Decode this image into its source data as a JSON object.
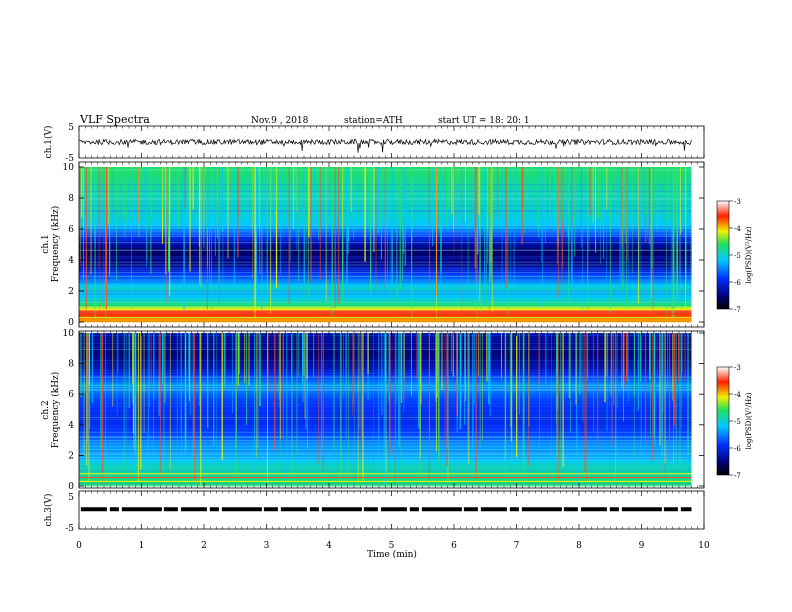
{
  "header": {
    "title": "VLF  Spectra",
    "date": "Nov.9  , 2018",
    "station": "station=ATH",
    "start": "start  UT  =    18: 20: 1"
  },
  "chart_data": [
    {
      "type": "line",
      "panel": "ch1-waveform",
      "ylabel": "ch.1(V)",
      "ylim": [
        -5,
        5
      ],
      "yticks": [
        "5",
        "-5"
      ],
      "xlim": [
        0,
        10
      ],
      "series": [
        {
          "values_description_free": true,
          "approx_level": 0,
          "approx_amplitude": 1.2,
          "end_min": 9.8
        }
      ]
    },
    {
      "type": "heatmap",
      "panel": "ch1-spectrogram",
      "ylabel": "ch.1\nFrequency  (kHz)",
      "ylim": [
        0,
        10
      ],
      "yticks": [
        "0",
        "2",
        "4",
        "6",
        "8",
        "10"
      ],
      "xlim": [
        0,
        10
      ],
      "data_end_min": 9.8,
      "color_scale": {
        "label": "log(PSD)(V²/Hz)",
        "range": [
          -7,
          -3
        ],
        "ticks": [
          "-3",
          "-4",
          "-5",
          "-6",
          "-7"
        ]
      },
      "band_profile_kHz_logPSD": [
        [
          0,
          -4.0
        ],
        [
          0.6,
          -3.4
        ],
        [
          1.0,
          -4.6
        ],
        [
          1.6,
          -5.2
        ],
        [
          2.2,
          -5.0
        ],
        [
          3.0,
          -5.8
        ],
        [
          3.6,
          -6.4
        ],
        [
          4.6,
          -6.6
        ],
        [
          5.4,
          -6.0
        ],
        [
          6.2,
          -5.2
        ],
        [
          7.2,
          -5.0
        ],
        [
          8.4,
          -4.9
        ],
        [
          10,
          -4.6
        ]
      ]
    },
    {
      "type": "heatmap",
      "panel": "ch2-spectrogram",
      "ylabel": "ch.2\nFrequency  (kHz)",
      "ylim": [
        0,
        10
      ],
      "yticks": [
        "0",
        "2",
        "4",
        "6",
        "8",
        "10"
      ],
      "xlim": [
        0,
        10
      ],
      "data_end_min": 9.8,
      "color_scale": {
        "label": "log(PSD)(V²/Hz)",
        "range": [
          -7,
          -3
        ],
        "ticks": [
          "-3",
          "-4",
          "-5",
          "-6",
          "-7"
        ]
      },
      "band_profile_kHz_logPSD": [
        [
          0,
          -4.6
        ],
        [
          0.6,
          -4.8
        ],
        [
          1.4,
          -5.0
        ],
        [
          2.0,
          -5.4
        ],
        [
          2.6,
          -5.4
        ],
        [
          3.4,
          -5.8
        ],
        [
          4.4,
          -6.0
        ],
        [
          5.6,
          -5.8
        ],
        [
          6.6,
          -5.4
        ],
        [
          7.6,
          -6.2
        ],
        [
          8.6,
          -6.5
        ],
        [
          10,
          -6.3
        ]
      ]
    },
    {
      "type": "line",
      "panel": "ch3-waveform",
      "ylabel": "ch.3(V)",
      "ylim": [
        -5,
        5
      ],
      "yticks": [
        "5",
        "-5"
      ],
      "xlim": [
        0,
        10
      ],
      "xlabel": "Time  (min)",
      "xticks": [
        "0",
        "1",
        "2",
        "3",
        "4",
        "5",
        "6",
        "7",
        "8",
        "9",
        "10"
      ],
      "series": [
        {
          "approx_level": 0.2,
          "style": "dashed-thick",
          "end_min": 9.8
        }
      ]
    }
  ]
}
